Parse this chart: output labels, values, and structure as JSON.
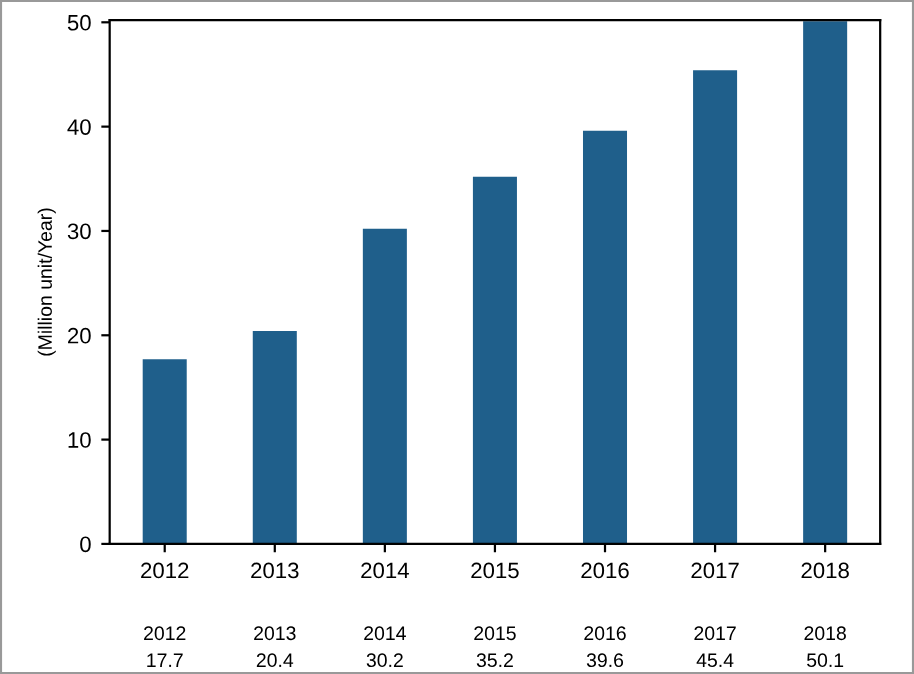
{
  "chart_data": {
    "type": "bar",
    "ylabel": "(Million unit/Year)",
    "categories": [
      "2012",
      "2013",
      "2014",
      "2015",
      "2016",
      "2017",
      "2018"
    ],
    "values": [
      17.7,
      20.4,
      30.2,
      35.2,
      39.6,
      45.4,
      50.1
    ],
    "color": "#1f5f8b",
    "ylim": [
      0,
      50.2
    ],
    "yticks": [
      0,
      10,
      20,
      30,
      40,
      50
    ],
    "grid": false,
    "data_labels": true
  }
}
